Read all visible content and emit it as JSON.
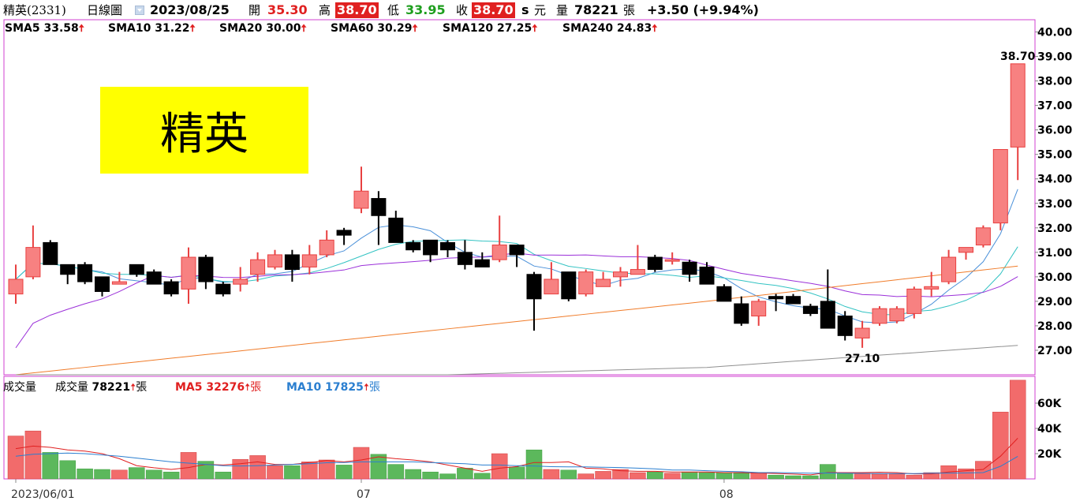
{
  "header": {
    "stock": "精英(2331)",
    "period": "日線圖",
    "date": "2023/08/25",
    "open_label": "開",
    "open": "35.30",
    "high_label": "高",
    "high": "38.70",
    "low_label": "低",
    "low": "33.95",
    "close_label": "收",
    "close": "38.70",
    "s_mark": "s",
    "yuan": "元",
    "volume_label": "量",
    "volume": "78221",
    "volume_unit": "張",
    "change": "+3.50 (+9.94%)"
  },
  "title_box": "精英",
  "sma_legend": [
    {
      "label": "SMA5 33.58",
      "arrow": "🠅",
      "color": "#4a90d9"
    },
    {
      "label": "SMA10 31.22",
      "arrow": "🠅",
      "color": "#33c3c3"
    },
    {
      "label": "SMA20 30.00",
      "arrow": "🠅",
      "color": "#9b30d9"
    },
    {
      "label": "SMA60 30.29",
      "arrow": "🠅",
      "color": "#f07c2a"
    },
    {
      "label": "SMA120 27.25",
      "arrow": "🠅",
      "color": "#909090"
    },
    {
      "label": "SMA240 24.83",
      "arrow": "🠅",
      "color": "#2b8fd0"
    }
  ],
  "volume_legend": {
    "title": "成交量",
    "vol_label": "成交量",
    "vol_value": "78221",
    "unit": "張",
    "ma5_label": "MA5 32276",
    "ma10_label": "MA10 17825",
    "arrow": "🠅"
  },
  "colors": {
    "up": "#f78181",
    "up_edge": "#e84040",
    "down": "#000000",
    "vol_up": "#f26b6b",
    "vol_down": "#5cb85c",
    "sma5": "#4a90d9",
    "sma10": "#33c3c3",
    "sma20": "#9b30d9",
    "sma60": "#f07c2a",
    "sma120": "#909090",
    "frame": "#d040d0"
  },
  "chart_data": {
    "type": "candlestick",
    "x_labels": [
      "2023/06/01",
      "07",
      "08"
    ],
    "x_label_index": [
      0,
      20,
      41
    ],
    "y_ticks": [
      "27.00",
      "28.00",
      "29.00",
      "30.00",
      "31.00",
      "32.00",
      "33.00",
      "34.00",
      "35.00",
      "36.00",
      "37.00",
      "38.00",
      "39.00",
      "40.00"
    ],
    "ylim": [
      26.0,
      40.5
    ],
    "annotations": [
      {
        "index": 58,
        "price": 38.7,
        "text": "38.70"
      },
      {
        "index": 49,
        "price": 27.1,
        "text": "27.10"
      }
    ],
    "ohlc": [
      [
        29.3,
        30.5,
        28.9,
        29.9
      ],
      [
        30.0,
        32.1,
        29.9,
        31.2
      ],
      [
        31.4,
        31.5,
        30.5,
        30.5
      ],
      [
        30.5,
        30.5,
        29.7,
        30.1
      ],
      [
        30.5,
        30.6,
        29.7,
        29.8
      ],
      [
        30.0,
        30.0,
        29.2,
        29.4
      ],
      [
        29.7,
        30.2,
        29.7,
        29.8
      ],
      [
        30.5,
        30.5,
        30.0,
        30.1
      ],
      [
        30.2,
        30.3,
        29.7,
        29.7
      ],
      [
        29.8,
        29.9,
        29.2,
        29.3
      ],
      [
        29.5,
        31.2,
        28.9,
        30.8
      ],
      [
        30.8,
        30.9,
        29.5,
        29.8
      ],
      [
        29.7,
        29.8,
        29.2,
        29.3
      ],
      [
        29.7,
        30.4,
        29.4,
        29.9
      ],
      [
        30.1,
        31.0,
        29.8,
        30.7
      ],
      [
        30.4,
        31.1,
        30.3,
        30.9
      ],
      [
        30.9,
        31.1,
        29.8,
        30.3
      ],
      [
        30.4,
        31.3,
        30.1,
        30.9
      ],
      [
        30.9,
        31.9,
        30.8,
        31.5
      ],
      [
        31.9,
        32.0,
        31.3,
        31.7
      ],
      [
        32.8,
        34.5,
        32.6,
        33.5
      ],
      [
        33.2,
        33.5,
        31.3,
        32.5
      ],
      [
        32.4,
        32.7,
        31.4,
        31.4
      ],
      [
        31.4,
        31.5,
        31.0,
        31.1
      ],
      [
        31.5,
        31.5,
        30.6,
        30.9
      ],
      [
        31.4,
        31.5,
        30.8,
        31.1
      ],
      [
        31.0,
        31.5,
        30.3,
        30.5
      ],
      [
        30.7,
        31.0,
        30.4,
        30.4
      ],
      [
        30.7,
        32.5,
        30.6,
        31.3
      ],
      [
        31.3,
        31.3,
        30.4,
        30.9
      ],
      [
        30.1,
        30.2,
        27.8,
        29.1
      ],
      [
        29.3,
        30.6,
        29.3,
        29.9
      ],
      [
        30.2,
        30.2,
        29.0,
        29.1
      ],
      [
        29.3,
        30.3,
        29.2,
        30.2
      ],
      [
        29.6,
        30.2,
        29.6,
        29.9
      ],
      [
        30.0,
        30.4,
        29.6,
        30.2
      ],
      [
        30.1,
        31.3,
        30.1,
        30.3
      ],
      [
        30.8,
        30.9,
        30.2,
        30.3
      ],
      [
        30.7,
        31.0,
        30.5,
        30.7
      ],
      [
        30.6,
        30.7,
        29.8,
        30.1
      ],
      [
        30.4,
        30.6,
        29.7,
        29.7
      ],
      [
        29.6,
        29.7,
        29.0,
        29.0
      ],
      [
        28.9,
        29.2,
        28.0,
        28.1
      ],
      [
        28.4,
        29.1,
        28.0,
        29.0
      ],
      [
        29.2,
        29.3,
        28.6,
        29.1
      ],
      [
        29.2,
        29.3,
        28.9,
        28.9
      ],
      [
        28.8,
        28.9,
        28.4,
        28.5
      ],
      [
        29.0,
        30.3,
        27.9,
        27.9
      ],
      [
        28.4,
        28.6,
        27.4,
        27.6
      ],
      [
        27.5,
        28.2,
        27.1,
        27.9
      ],
      [
        28.1,
        28.8,
        28.0,
        28.7
      ],
      [
        28.2,
        28.8,
        28.1,
        28.7
      ],
      [
        28.5,
        29.6,
        28.3,
        29.5
      ],
      [
        29.5,
        30.2,
        29.2,
        29.6
      ],
      [
        29.8,
        31.1,
        29.7,
        30.8
      ],
      [
        31.0,
        31.2,
        30.7,
        31.2
      ],
      [
        31.3,
        32.1,
        31.2,
        32.0
      ],
      [
        32.2,
        35.2,
        31.9,
        35.2
      ],
      [
        35.3,
        38.7,
        33.95,
        38.7
      ]
    ],
    "volume": {
      "ylim": [
        0,
        80000
      ],
      "y_ticks": [
        "20K",
        "40K",
        "60K"
      ],
      "values": [
        34000,
        38000,
        21000,
        14500,
        8000,
        7500,
        7000,
        9000,
        7000,
        5500,
        21000,
        14000,
        5500,
        15500,
        18500,
        10500,
        10500,
        13500,
        15000,
        11000,
        25000,
        19500,
        11500,
        7500,
        5500,
        4000,
        8500,
        4500,
        20000,
        9500,
        23000,
        7500,
        7000,
        4000,
        6000,
        7500,
        5000,
        5500,
        4500,
        5500,
        5000,
        5000,
        4500,
        4500,
        3000,
        2500,
        2500,
        11500,
        4500,
        4500,
        4000,
        4000,
        3000,
        5000,
        10500,
        8000,
        14000,
        53000,
        78221
      ],
      "ma5": [
        24000,
        26000,
        25000,
        23000,
        22000,
        20000,
        16000,
        10500,
        8800,
        7500,
        9000,
        11500,
        11000,
        12000,
        13500,
        11500,
        11500,
        13000,
        14500,
        13500,
        15000,
        17500,
        16000,
        15000,
        13500,
        11000,
        8500,
        6000,
        8500,
        9800,
        13000,
        13000,
        13500,
        8500,
        8000,
        6500,
        6000,
        6000,
        5500,
        5500,
        5500,
        5000,
        5000,
        4700,
        4300,
        3800,
        3200,
        5000,
        5000,
        5000,
        5300,
        5000,
        4000,
        4000,
        5500,
        6500,
        7500,
        18000,
        32276
      ],
      "ma10": [
        18000,
        19500,
        20000,
        20500,
        20000,
        19000,
        18000,
        16500,
        15000,
        13500,
        12500,
        11500,
        10500,
        10200,
        10500,
        11000,
        11500,
        12000,
        12800,
        13000,
        13500,
        13500,
        13500,
        13500,
        13000,
        12500,
        12000,
        11000,
        11000,
        10500,
        10200,
        9700,
        9500,
        9500,
        9200,
        9000,
        8500,
        8000,
        7000,
        7000,
        6500,
        6000,
        5700,
        5000,
        5000,
        4800,
        4500,
        4700,
        4500,
        4400,
        4200,
        4200,
        4200,
        4500,
        4600,
        4800,
        5000,
        10000,
        17825
      ]
    }
  }
}
